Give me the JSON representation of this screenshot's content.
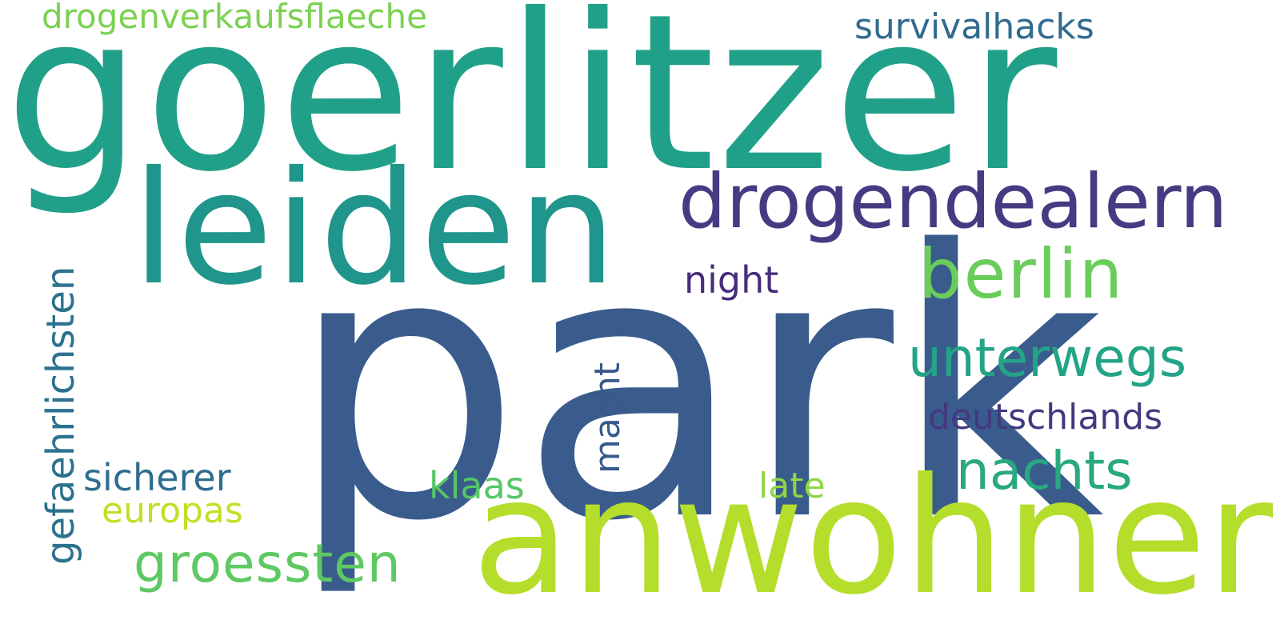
{
  "word_cloud": {
    "background_color": "#ffffff",
    "words": [
      {
        "key": "goerlitzer",
        "text": "goerlitzer",
        "color": "#21a089"
      },
      {
        "key": "park",
        "text": "park",
        "color": "#3a5c8d"
      },
      {
        "key": "anwohner",
        "text": "anwohner",
        "color": "#b5dd2b"
      },
      {
        "key": "leiden",
        "text": "leiden",
        "color": "#20958b"
      },
      {
        "key": "drogendealern",
        "text": "drogendealern",
        "color": "#463b82"
      },
      {
        "key": "berlin",
        "text": "berlin",
        "color": "#6acd5b"
      },
      {
        "key": "unterwegs",
        "text": "unterwegs",
        "color": "#24a487"
      },
      {
        "key": "nachts",
        "text": "nachts",
        "color": "#28a97f"
      },
      {
        "key": "deutschlands",
        "text": "deutschlands",
        "color": "#423980"
      },
      {
        "key": "survivalhacks",
        "text": "survivalhacks",
        "color": "#306a8e"
      },
      {
        "key": "drogenverkaufsflaeche",
        "text": "drogenverkaufsflaeche",
        "color": "#7bd151"
      },
      {
        "key": "night",
        "text": "night",
        "color": "#472d7b"
      },
      {
        "key": "groessten",
        "text": "groessten",
        "color": "#5ec962"
      },
      {
        "key": "sicherer",
        "text": "sicherer",
        "color": "#2e6d8e"
      },
      {
        "key": "europas",
        "text": "europas",
        "color": "#c2df23"
      },
      {
        "key": "klaas",
        "text": "klaas",
        "color": "#56c667"
      },
      {
        "key": "late",
        "text": "late",
        "color": "#8fd744"
      },
      {
        "key": "macht",
        "text": "macht",
        "color": "#38598c"
      },
      {
        "key": "gefaehrlichsten",
        "text": "gefaehrlichsten",
        "color": "#2c728e"
      }
    ]
  }
}
